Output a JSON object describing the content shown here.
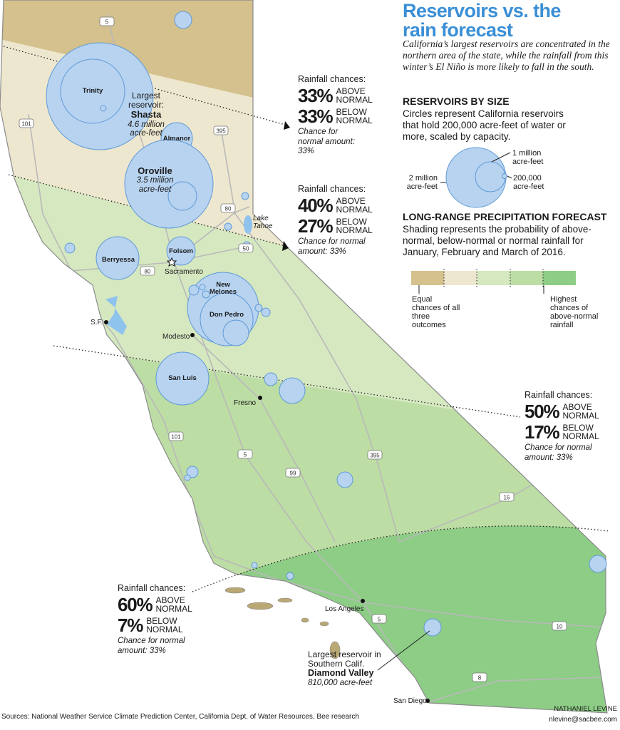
{
  "header": {
    "title": "Reservoirs vs. the rain forecast",
    "intro": "California’s largest reservoirs are concentrated in the northern area of the state, while the rainfall from this winter’s El Niño is more likely to fall in the south."
  },
  "size_legend": {
    "heading": "RESERVOIRS BY SIZE",
    "text": "Circles represent California reservoirs that hold 200,000 acre-feet of water or more, scaled by capacity.",
    "labels": [
      "1 million acre-feet",
      "2 million acre-feet",
      "200,000 acre-feet"
    ]
  },
  "forecast_legend": {
    "heading": "LONG-RANGE PRECIPITATION FORECAST",
    "text": "Shading represents the probability of above-normal, below-normal or normal rainfall for January, February and March of 2016.",
    "low": "Equal chances of all three outcomes",
    "high": "Highest chances of above-normal rainfall"
  },
  "zones": [
    {
      "label": "Rainfall chances:",
      "above": "33%",
      "above_label": "ABOVE NORMAL",
      "below": "33%",
      "below_label": "BELOW NORMAL",
      "normal": "Chance for normal amount: 33%"
    },
    {
      "label": "Rainfall chances:",
      "above": "40%",
      "above_label": "ABOVE NORMAL",
      "below": "27%",
      "below_label": "BELOW NORMAL",
      "normal": "Chance for normal amount: 33%"
    },
    {
      "label": "Rainfall chances:",
      "above": "50%",
      "above_label": "ABOVE NORMAL",
      "below": "17%",
      "below_label": "BELOW NORMAL",
      "normal": "Chance for normal amount: 33%"
    },
    {
      "label": "Rainfall chances:",
      "above": "60%",
      "above_label": "ABOVE NORMAL",
      "below": "7%",
      "below_label": "BELOW NORMAL",
      "normal": "Chance for normal amount: 33%"
    }
  ],
  "reservoirs": {
    "names": [
      "Trinity",
      "Almanor",
      "Berryessa",
      "Folsom",
      "New Melones",
      "Don Pedro",
      "San Luis"
    ],
    "shasta": {
      "lead": "Largest reservoir:",
      "name": "Shasta",
      "size": "4.6 million acre-feet"
    },
    "oroville": {
      "name": "Oroville",
      "size": "3.5 million acre-feet"
    },
    "diamond": {
      "lead": "Largest reservoir in Southern Calif.",
      "name": "Diamond Valley",
      "size": "810,000 acre-feet"
    }
  },
  "places": [
    "Lake Tahoe",
    "Sacramento",
    "S.F.",
    "Modesto",
    "Fresno",
    "Los Angeles",
    "San Diego"
  ],
  "highways": [
    "5",
    "101",
    "395",
    "80",
    "50",
    "80",
    "5",
    "101",
    "99",
    "395",
    "15",
    "5",
    "10",
    "8"
  ],
  "footer": {
    "sources": "Sources: National Weather Service Climate Prediction Center, California Dept. of Water Resources, Bee research",
    "credit": "NATHANIEL LEVINE",
    "email": "nlevine@sacbee.com"
  }
}
